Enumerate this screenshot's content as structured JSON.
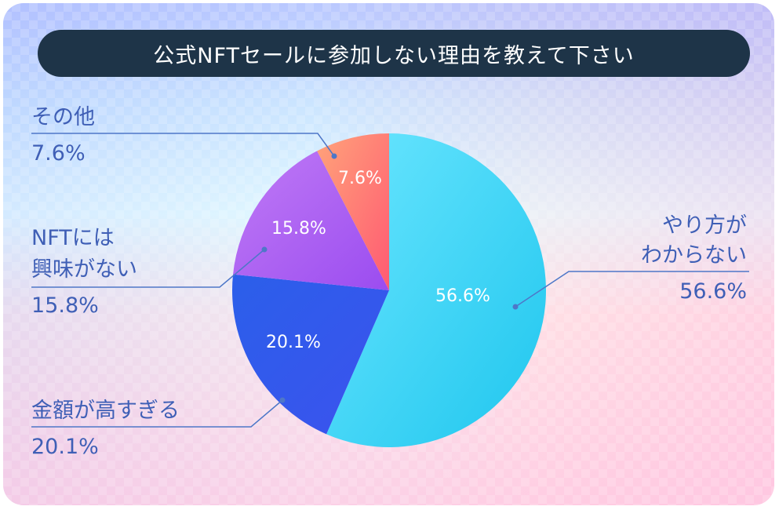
{
  "chart_data": {
    "type": "pie",
    "title": "公式NFTセールに参加しない理由を教えて下さい",
    "slices": [
      {
        "label_lines": [
          "やり方が",
          "わからない"
        ],
        "value": 56.6,
        "value_label": "56.6%"
      },
      {
        "label_lines": [
          "金額が高すぎる"
        ],
        "value": 20.1,
        "value_label": "20.1%"
      },
      {
        "label_lines": [
          "NFTには",
          "興味がない"
        ],
        "value": 15.8,
        "value_label": "15.8%"
      },
      {
        "label_lines": [
          "その他"
        ],
        "value": 7.6,
        "value_label": "7.6%"
      }
    ],
    "colors": {
      "slice_0": [
        "#28d8f5",
        "#6be6ff"
      ],
      "slice_1": [
        "#2b56e8",
        "#4e8bff"
      ],
      "slice_2": [
        "#a255f2",
        "#c57af5"
      ],
      "slice_3": [
        "#ff6070",
        "#ffa77a"
      ],
      "leader": "#4e77c8",
      "title_bg": "#1e3448"
    }
  }
}
